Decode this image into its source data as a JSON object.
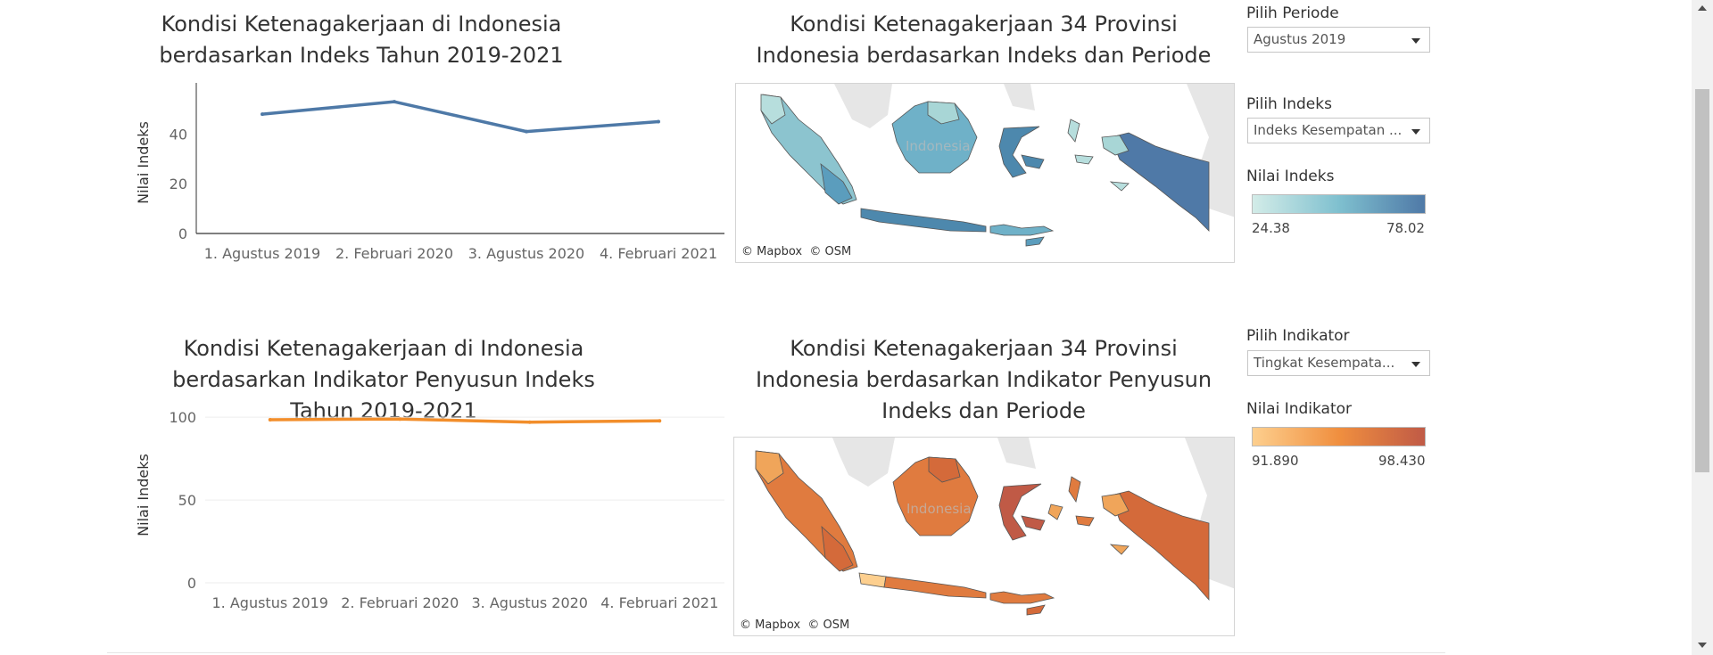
{
  "top": {
    "line_chart_title": "Kondisi Ketenagakerjaan di Indonesia berdasarkan Indeks Tahun 2019-2021",
    "map_title": "Kondisi Ketenagakerjaan 34 Provinsi Indonesia berdasarkan Indeks dan Periode",
    "map_credit_mapbox": "© Mapbox",
    "map_credit_osm": "© OSM",
    "map_label": "Indonesia"
  },
  "bottom": {
    "line_chart_title": "Kondisi Ketenagakerjaan di Indonesia berdasarkan Indikator Penyusun Indeks Tahun 2019-2021",
    "map_title": "Kondisi Ketenagakerjaan 34 Provinsi Indonesia berdasarkan Indikator Penyusun Indeks dan Periode",
    "map_credit_mapbox": "© Mapbox",
    "map_credit_osm": "© OSM",
    "map_label": "Indonesia"
  },
  "controls": {
    "periode_label": "Pilih Periode",
    "periode_value": "Agustus 2019",
    "indeks_label": "Pilih Indeks",
    "indeks_value": "Indeks Kesempatan ...",
    "nilai_indeks_label": "Nilai Indeks",
    "nilai_indeks_min": "24.38",
    "nilai_indeks_max": "78.02",
    "indikator_label": "Pilih Indikator",
    "indikator_value": "Tingkat Kesempata...",
    "nilai_indikator_label": "Nilai Indikator",
    "nilai_indikator_min": "91.890",
    "nilai_indikator_max": "98.430"
  },
  "colors": {
    "line_top": "#4e79a7",
    "line_bottom": "#f28e2b",
    "blue_low": "#d3ece8",
    "blue_high": "#4f79a7",
    "orange_low": "#fdcf8e",
    "orange_high": "#c05a46",
    "land_grey": "#e3e3e3"
  },
  "chart_data": [
    {
      "type": "line",
      "title": "Kondisi Ketenagakerjaan di Indonesia berdasarkan Indeks Tahun 2019-2021",
      "ylabel": "Nilai Indeks",
      "categories": [
        "1. Agustus 2019",
        "2. Februari 2020",
        "3. Agustus 2020",
        "4. Februari 2021"
      ],
      "values": [
        48,
        53,
        41,
        45
      ],
      "yticks": [
        0,
        20,
        40
      ],
      "ylim": [
        0,
        57
      ],
      "grid": false,
      "color": "#4e79a7"
    },
    {
      "type": "line",
      "title": "Kondisi Ketenagakerjaan di Indonesia berdasarkan Indikator Penyusun Indeks Tahun 2019-2021",
      "ylabel": "Nilai Indeks",
      "categories": [
        "1. Agustus 2019",
        "2. Februari 2020",
        "3. Agustus 2020",
        "4. Februari 2021"
      ],
      "values": [
        98.5,
        98.9,
        97.0,
        97.8
      ],
      "yticks": [
        0,
        50,
        100
      ],
      "ylim": [
        0,
        106
      ],
      "grid": true,
      "color": "#f28e2b"
    }
  ]
}
